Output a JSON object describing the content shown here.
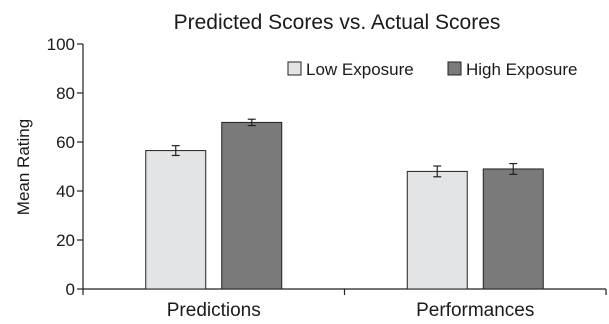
{
  "chart_data": {
    "type": "bar",
    "title": "Predicted Scores vs. Actual Scores",
    "xlabel": "",
    "ylabel": "Mean Rating",
    "ylim": [
      0,
      100
    ],
    "yticks": [
      0,
      20,
      40,
      60,
      80,
      100
    ],
    "categories": [
      "Predictions",
      "Performances"
    ],
    "series": [
      {
        "name": "Low Exposure",
        "color": "#e3e4e5",
        "values": [
          56.5,
          48
        ],
        "errors": [
          2,
          2.2
        ]
      },
      {
        "name": "High Exposure",
        "color": "#7a7a7a",
        "values": [
          68,
          49
        ]
      }
    ],
    "series_errors_high": [
      1.3,
      2.2
    ],
    "legend_position": "top-right",
    "grid": false
  }
}
